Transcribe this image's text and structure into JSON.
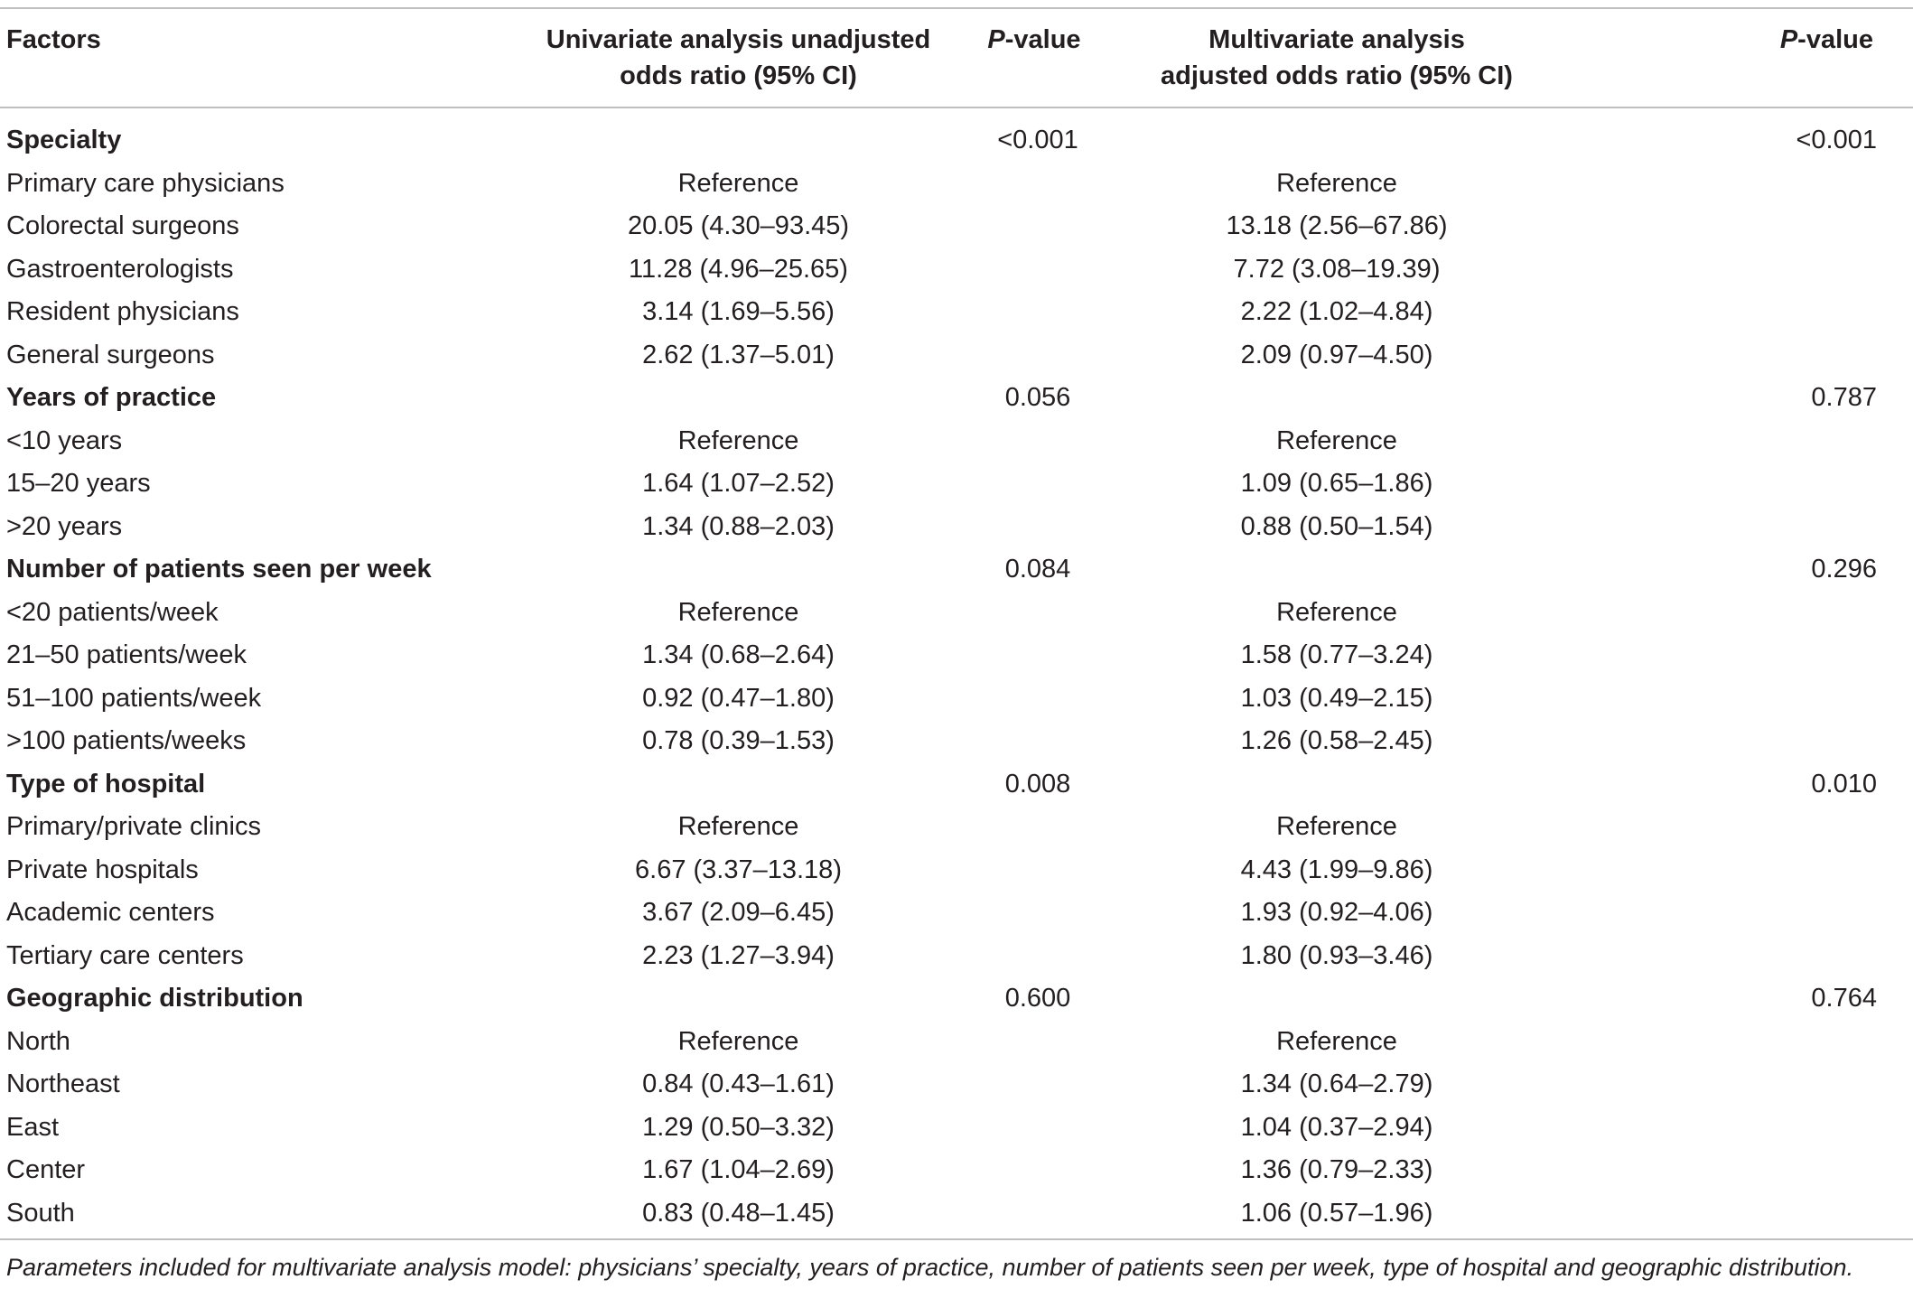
{
  "header": {
    "factors": "Factors",
    "uni_line1": "Univariate analysis unadjusted",
    "uni_line2": "odds ratio (95% CI)",
    "p_prefix": "P",
    "p_suffix": "-value",
    "multi_line1": "Multivariate analysis",
    "multi_line2": "adjusted odds ratio (95% CI)"
  },
  "groups": [
    {
      "name": "Specialty",
      "p_uni": "<0.001",
      "p_multi": "<0.001",
      "rows": [
        {
          "factor": "Primary care physicians",
          "uni": "Reference",
          "multi": "Reference"
        },
        {
          "factor": "Colorectal surgeons",
          "uni": "20.05 (4.30–93.45)",
          "multi": "13.18 (2.56–67.86)"
        },
        {
          "factor": "Gastroenterologists",
          "uni": "11.28 (4.96–25.65)",
          "multi": "7.72 (3.08–19.39)"
        },
        {
          "factor": "Resident physicians",
          "uni": "3.14 (1.69–5.56)",
          "multi": "2.22 (1.02–4.84)"
        },
        {
          "factor": "General surgeons",
          "uni": "2.62 (1.37–5.01)",
          "multi": "2.09 (0.97–4.50)"
        }
      ]
    },
    {
      "name": "Years of practice",
      "p_uni": "0.056",
      "p_multi": "0.787",
      "rows": [
        {
          "factor": "<10 years",
          "uni": "Reference",
          "multi": "Reference"
        },
        {
          "factor": "15–20 years",
          "uni": "1.64 (1.07–2.52)",
          "multi": "1.09 (0.65–1.86)"
        },
        {
          "factor": ">20 years",
          "uni": "1.34 (0.88–2.03)",
          "multi": "0.88 (0.50–1.54)"
        }
      ]
    },
    {
      "name": "Number of patients seen per week",
      "p_uni": "0.084",
      "p_multi": "0.296",
      "rows": [
        {
          "factor": "<20 patients/week",
          "uni": "Reference",
          "multi": "Reference"
        },
        {
          "factor": "21–50 patients/week",
          "uni": "1.34 (0.68–2.64)",
          "multi": "1.58 (0.77–3.24)"
        },
        {
          "factor": "51–100 patients/week",
          "uni": "0.92 (0.47–1.80)",
          "multi": "1.03 (0.49–2.15)"
        },
        {
          "factor": ">100 patients/weeks",
          "uni": "0.78 (0.39–1.53)",
          "multi": "1.26 (0.58–2.45)"
        }
      ]
    },
    {
      "name": "Type of hospital",
      "p_uni": "0.008",
      "p_multi": "0.010",
      "rows": [
        {
          "factor": "Primary/private clinics",
          "uni": "Reference",
          "multi": "Reference"
        },
        {
          "factor": "Private hospitals",
          "uni": "6.67 (3.37–13.18)",
          "multi": "4.43 (1.99–9.86)"
        },
        {
          "factor": "Academic centers",
          "uni": "3.67 (2.09–6.45)",
          "multi": "1.93 (0.92–4.06)"
        },
        {
          "factor": "Tertiary care centers",
          "uni": "2.23 (1.27–3.94)",
          "multi": "1.80 (0.93–3.46)"
        }
      ]
    },
    {
      "name": "Geographic distribution",
      "p_uni": "0.600",
      "p_multi": "0.764",
      "rows": [
        {
          "factor": "North",
          "uni": "Reference",
          "multi": "Reference"
        },
        {
          "factor": "Northeast",
          "uni": "0.84 (0.43–1.61)",
          "multi": "1.34 (0.64–2.79)"
        },
        {
          "factor": "East",
          "uni": "1.29 (0.50–3.32)",
          "multi": "1.04 (0.37–2.94)"
        },
        {
          "factor": "Center",
          "uni": "1.67 (1.04–2.69)",
          "multi": "1.36 (0.79–2.33)"
        },
        {
          "factor": "South",
          "uni": "0.83 (0.48–1.45)",
          "multi": "1.06 (0.57–1.96)"
        }
      ]
    }
  ],
  "footnote": "Parameters included for multivariate analysis model: physicians’ specialty, years of practice, number of patients seen per week, type of hospital and geographic distribution."
}
